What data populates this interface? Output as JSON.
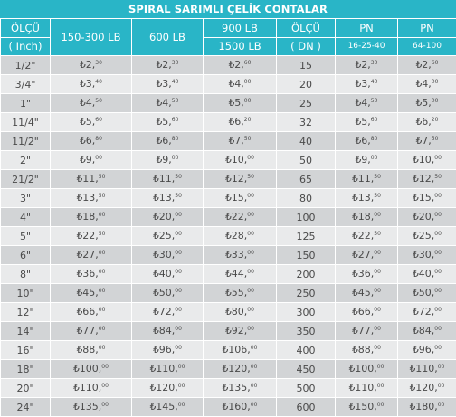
{
  "title": "SPIRAL SARIMLI ÇELİK CONTALAR",
  "currency_symbol": "₺",
  "header": {
    "size_inch_top": "ÖLÇÜ",
    "size_inch_bottom": "( Inch)",
    "lb150_300": "150-300 LB",
    "lb600": "600 LB",
    "lb900_top": "900 LB",
    "lb900_bottom": "1500 LB",
    "size_dn_top": "ÖLÇÜ",
    "size_dn_bottom": "( DN )",
    "pn_low_top": "PN",
    "pn_low_bottom": "16-25-40",
    "pn_high_top": "PN",
    "pn_high_bottom": "64-100"
  },
  "rows": [
    {
      "inch": "1/2\"",
      "p150": [
        "2",
        "30"
      ],
      "p600": [
        "2",
        "30"
      ],
      "p900": [
        "2",
        "60"
      ],
      "dn": "15",
      "pn16": [
        "2",
        "30"
      ],
      "pn64": [
        "2",
        "60"
      ]
    },
    {
      "inch": "3/4\"",
      "p150": [
        "3",
        "40"
      ],
      "p600": [
        "3",
        "40"
      ],
      "p900": [
        "4",
        "00"
      ],
      "dn": "20",
      "pn16": [
        "3",
        "40"
      ],
      "pn64": [
        "4",
        "00"
      ]
    },
    {
      "inch": "1\"",
      "p150": [
        "4",
        "50"
      ],
      "p600": [
        "4",
        "50"
      ],
      "p900": [
        "5",
        "00"
      ],
      "dn": "25",
      "pn16": [
        "4",
        "50"
      ],
      "pn64": [
        "5",
        "00"
      ]
    },
    {
      "inch": "11/4\"",
      "p150": [
        "5",
        "60"
      ],
      "p600": [
        "5",
        "60"
      ],
      "p900": [
        "6",
        "20"
      ],
      "dn": "32",
      "pn16": [
        "5",
        "60"
      ],
      "pn64": [
        "6",
        "20"
      ]
    },
    {
      "inch": "11/2\"",
      "p150": [
        "6",
        "80"
      ],
      "p600": [
        "6",
        "80"
      ],
      "p900": [
        "7",
        "50"
      ],
      "dn": "40",
      "pn16": [
        "6",
        "80"
      ],
      "pn64": [
        "7",
        "50"
      ]
    },
    {
      "inch": "2\"",
      "p150": [
        "9",
        "00"
      ],
      "p600": [
        "9",
        "00"
      ],
      "p900": [
        "10",
        "00"
      ],
      "dn": "50",
      "pn16": [
        "9",
        "00"
      ],
      "pn64": [
        "10",
        "00"
      ]
    },
    {
      "inch": "21/2\"",
      "p150": [
        "11",
        "50"
      ],
      "p600": [
        "11",
        "50"
      ],
      "p900": [
        "12",
        "50"
      ],
      "dn": "65",
      "pn16": [
        "11",
        "50"
      ],
      "pn64": [
        "12",
        "50"
      ]
    },
    {
      "inch": "3\"",
      "p150": [
        "13",
        "50"
      ],
      "p600": [
        "13",
        "50"
      ],
      "p900": [
        "15",
        "00"
      ],
      "dn": "80",
      "pn16": [
        "13",
        "50"
      ],
      "pn64": [
        "15",
        "00"
      ]
    },
    {
      "inch": "4\"",
      "p150": [
        "18",
        "00"
      ],
      "p600": [
        "20",
        "00"
      ],
      "p900": [
        "22",
        "00"
      ],
      "dn": "100",
      "pn16": [
        "18",
        "00"
      ],
      "pn64": [
        "20",
        "00"
      ]
    },
    {
      "inch": "5\"",
      "p150": [
        "22",
        "50"
      ],
      "p600": [
        "25",
        "00"
      ],
      "p900": [
        "28",
        "00"
      ],
      "dn": "125",
      "pn16": [
        "22",
        "50"
      ],
      "pn64": [
        "25",
        "00"
      ]
    },
    {
      "inch": "6\"",
      "p150": [
        "27",
        "00"
      ],
      "p600": [
        "30",
        "00"
      ],
      "p900": [
        "33",
        "00"
      ],
      "dn": "150",
      "pn16": [
        "27",
        "00"
      ],
      "pn64": [
        "30",
        "00"
      ]
    },
    {
      "inch": "8\"",
      "p150": [
        "36",
        "00"
      ],
      "p600": [
        "40",
        "00"
      ],
      "p900": [
        "44",
        "00"
      ],
      "dn": "200",
      "pn16": [
        "36",
        "00"
      ],
      "pn64": [
        "40",
        "00"
      ]
    },
    {
      "inch": "10\"",
      "p150": [
        "45",
        "00"
      ],
      "p600": [
        "50",
        "00"
      ],
      "p900": [
        "55",
        "00"
      ],
      "dn": "250",
      "pn16": [
        "45",
        "00"
      ],
      "pn64": [
        "50",
        "00"
      ]
    },
    {
      "inch": "12\"",
      "p150": [
        "66",
        "00"
      ],
      "p600": [
        "72",
        "00"
      ],
      "p900": [
        "80",
        "00"
      ],
      "dn": "300",
      "pn16": [
        "66",
        "00"
      ],
      "pn64": [
        "72",
        "00"
      ]
    },
    {
      "inch": "14\"",
      "p150": [
        "77",
        "00"
      ],
      "p600": [
        "84",
        "00"
      ],
      "p900": [
        "92",
        "00"
      ],
      "dn": "350",
      "pn16": [
        "77",
        "00"
      ],
      "pn64": [
        "84",
        "00"
      ]
    },
    {
      "inch": "16\"",
      "p150": [
        "88",
        "00"
      ],
      "p600": [
        "96",
        "00"
      ],
      "p900": [
        "106",
        "00"
      ],
      "dn": "400",
      "pn16": [
        "88",
        "00"
      ],
      "pn64": [
        "96",
        "00"
      ]
    },
    {
      "inch": "18\"",
      "p150": [
        "100",
        "00"
      ],
      "p600": [
        "110",
        "00"
      ],
      "p900": [
        "120",
        "00"
      ],
      "dn": "450",
      "pn16": [
        "100",
        "00"
      ],
      "pn64": [
        "110",
        "00"
      ]
    },
    {
      "inch": "20\"",
      "p150": [
        "110",
        "00"
      ],
      "p600": [
        "120",
        "00"
      ],
      "p900": [
        "135",
        "00"
      ],
      "dn": "500",
      "pn16": [
        "110",
        "00"
      ],
      "pn64": [
        "120",
        "00"
      ]
    },
    {
      "inch": "24\"",
      "p150": [
        "135",
        "00"
      ],
      "p600": [
        "145",
        "00"
      ],
      "p900": [
        "160",
        "00"
      ],
      "dn": "600",
      "pn16": [
        "150",
        "00"
      ],
      "pn64": [
        "180",
        "00"
      ]
    }
  ]
}
